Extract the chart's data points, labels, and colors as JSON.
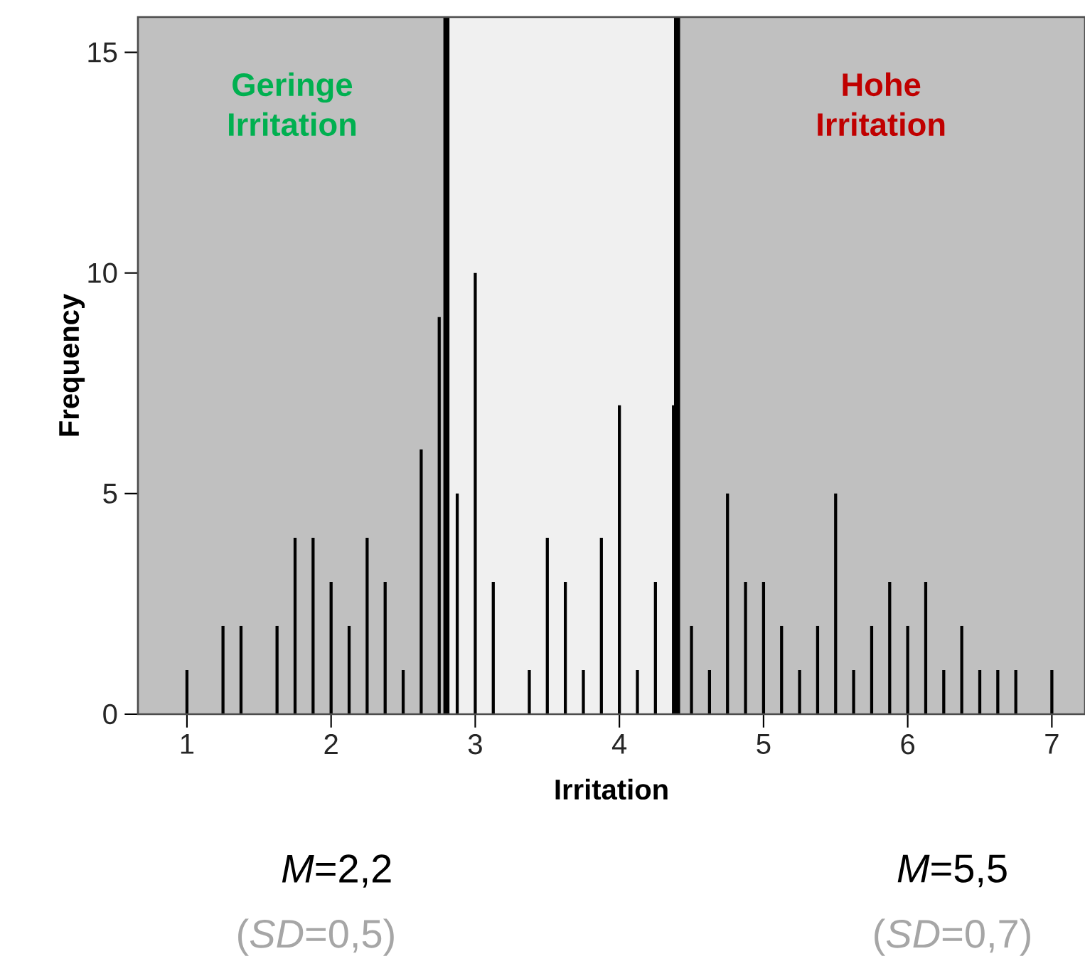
{
  "chart_data": {
    "type": "bar",
    "xlabel": "Irritation",
    "ylabel": "Frequency",
    "color": "#000000",
    "x": [
      1,
      1.25,
      1.375,
      1.625,
      1.75,
      1.875,
      2,
      2.125,
      2.25,
      2.375,
      2.5,
      2.625,
      2.75,
      2.875,
      3,
      3.125,
      3.375,
      3.5,
      3.625,
      3.75,
      3.875,
      4,
      4.125,
      4.25,
      4.375,
      4.5,
      4.625,
      4.75,
      4.875,
      5,
      5.125,
      5.25,
      5.375,
      5.5,
      5.625,
      5.75,
      5.875,
      6,
      6.125,
      6.25,
      6.375,
      6.5,
      6.625,
      6.75,
      7
    ],
    "values": [
      1,
      2,
      2,
      2,
      4,
      4,
      3,
      2,
      4,
      3,
      1,
      6,
      9,
      5,
      10,
      3,
      1,
      4,
      3,
      1,
      4,
      7,
      1,
      3,
      7,
      2,
      1,
      5,
      3,
      3,
      2,
      1,
      2,
      5,
      1,
      2,
      3,
      2,
      3,
      1,
      2,
      1,
      1,
      1,
      1
    ],
    "xlim": [
      0.66,
      7.23
    ],
    "ylim": [
      0,
      15.8
    ],
    "xticks": [
      1,
      2,
      3,
      4,
      5,
      6,
      7
    ],
    "yticks": [
      0,
      5,
      10,
      15
    ],
    "bands": [
      {
        "axis": "x",
        "from": 0.66,
        "to": 2.8,
        "color": "#c0c0c0",
        "label": "Geringe Irritation"
      },
      {
        "axis": "x",
        "from": 2.8,
        "to": 4.4,
        "color": "#f0f0f0"
      },
      {
        "axis": "x",
        "from": 4.4,
        "to": 7.23,
        "color": "#c0c0c0",
        "label": "Hohe Irritation"
      }
    ],
    "ref_lines": [
      {
        "axis": "x",
        "value": 2.8,
        "color": "#000000"
      },
      {
        "axis": "x",
        "value": 4.4,
        "color": "#000000"
      }
    ],
    "annotations": [
      "*M*=2,2",
      "(*SD*=0,5)",
      "*M*=5,5",
      "(*SD*=0,7)"
    ]
  }
}
